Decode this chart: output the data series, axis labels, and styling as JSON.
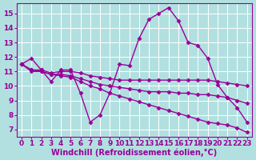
{
  "background_color": "#b2e0e0",
  "grid_color": "#ffffff",
  "line_color": "#990099",
  "marker": "D",
  "markersize": 2.5,
  "linewidth": 1.0,
  "xlabel": "Windchill (Refroidissement éolien,°C)",
  "xlabel_fontsize": 7.0,
  "tick_fontsize": 6.5,
  "xlim": [
    -0.5,
    23.5
  ],
  "ylim": [
    6.5,
    15.7
  ],
  "yticks": [
    7,
    8,
    9,
    10,
    11,
    12,
    13,
    14,
    15
  ],
  "xticks": [
    0,
    1,
    2,
    3,
    4,
    5,
    6,
    7,
    8,
    9,
    10,
    11,
    12,
    13,
    14,
    15,
    16,
    17,
    18,
    19,
    20,
    21,
    22,
    23
  ],
  "series": [
    [
      11.5,
      11.9,
      11.1,
      10.3,
      11.1,
      11.1,
      9.5,
      7.5,
      8.0,
      9.5,
      11.5,
      11.4,
      13.3,
      14.6,
      15.0,
      15.4,
      14.5,
      13.0,
      12.8,
      11.9,
      10.1,
      9.2,
      8.5,
      7.5
    ],
    [
      11.5,
      11.1,
      11.1,
      10.9,
      11.0,
      11.0,
      10.9,
      10.7,
      10.6,
      10.5,
      10.4,
      10.4,
      10.4,
      10.4,
      10.4,
      10.4,
      10.4,
      10.4,
      10.4,
      10.4,
      10.3,
      10.2,
      10.1,
      10.0
    ],
    [
      11.5,
      11.1,
      11.0,
      10.8,
      10.8,
      10.7,
      10.5,
      10.3,
      10.1,
      10.0,
      9.9,
      9.8,
      9.7,
      9.6,
      9.6,
      9.6,
      9.5,
      9.5,
      9.4,
      9.4,
      9.3,
      9.2,
      9.0,
      8.8
    ],
    [
      11.5,
      11.0,
      11.0,
      10.8,
      10.7,
      10.6,
      10.3,
      10.0,
      9.8,
      9.5,
      9.3,
      9.1,
      8.9,
      8.7,
      8.5,
      8.3,
      8.1,
      7.9,
      7.7,
      7.5,
      7.4,
      7.3,
      7.1,
      6.8
    ]
  ]
}
